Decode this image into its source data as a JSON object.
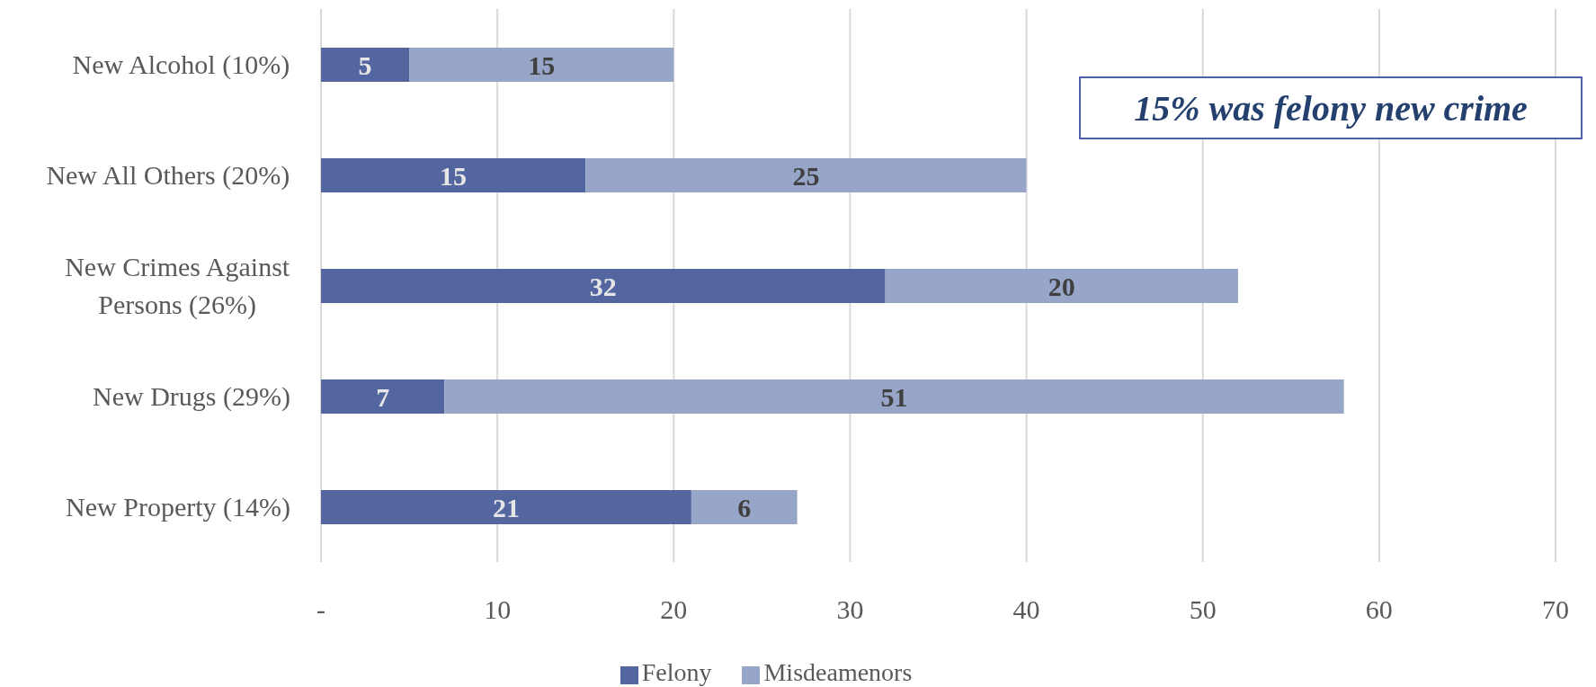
{
  "chart_data": {
    "type": "bar",
    "orientation": "horizontal",
    "stacked": true,
    "categories": [
      "New Alcohol (10%)",
      "New All Others (20%)",
      "New Crimes Against Persons (26%)",
      "New Drugs (29%)",
      "New Property (14%)"
    ],
    "series": [
      {
        "name": "Felony",
        "color": "#5466a0",
        "values": [
          5,
          15,
          32,
          7,
          21
        ]
      },
      {
        "name": "Misdeamenors",
        "color": "#97a5c8",
        "values": [
          15,
          25,
          20,
          51,
          6
        ]
      }
    ],
    "xlim": [
      0,
      70
    ],
    "xticks": [
      {
        "value": 0,
        "label": "-"
      },
      10,
      20,
      30,
      40,
      50,
      60,
      70
    ],
    "grid": "x",
    "legend": "bottom",
    "data_labels": true,
    "annotations": [
      "15% was felony new crime"
    ]
  }
}
